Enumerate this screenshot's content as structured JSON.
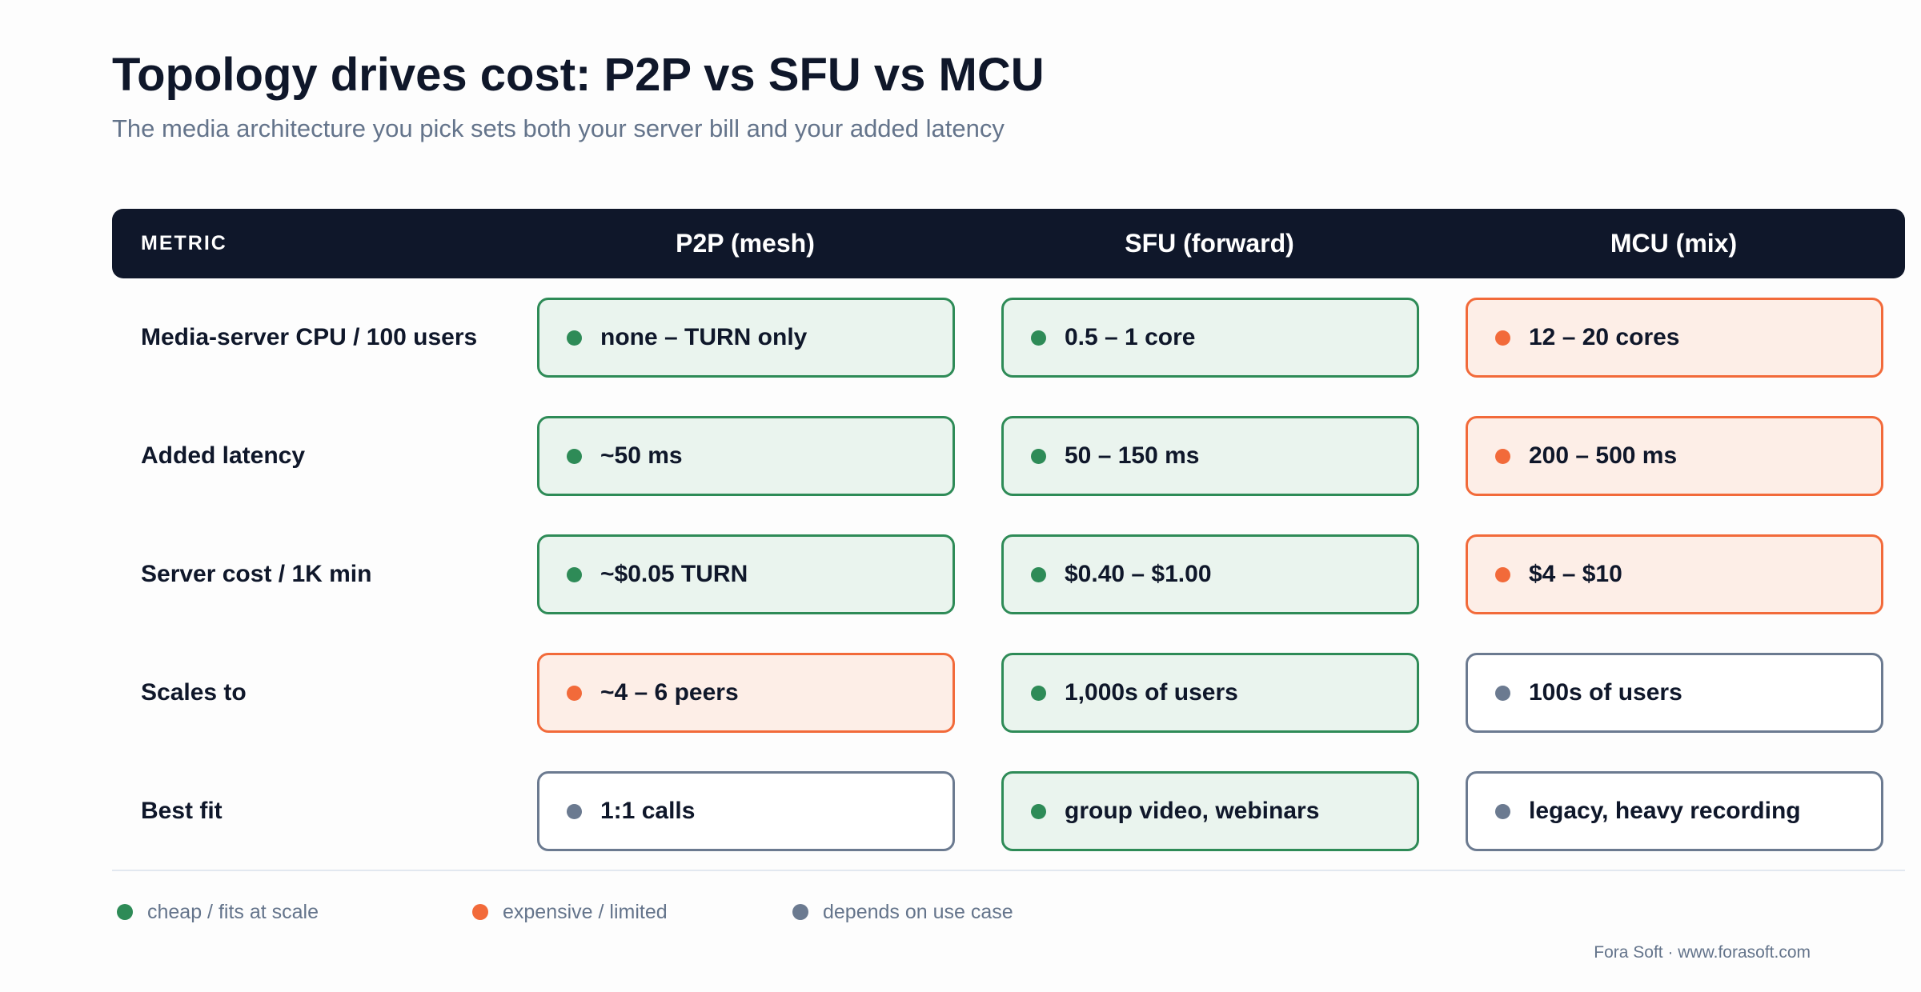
{
  "title": "Topology drives cost: P2P vs SFU vs MCU",
  "subtitle": "The media architecture you pick sets both your server bill and your added latency",
  "colors": {
    "header_bg": "#0f172a",
    "good": "#2e8b57",
    "good_fill": "#eaf4ee",
    "bad": "#f26a3a",
    "bad_fill": "#fdeee7",
    "neutral": "#6b7a90",
    "neutral_fill": "#ffffff"
  },
  "table": {
    "header": {
      "metric": "METRIC",
      "columns": [
        "P2P (mesh)",
        "SFU (forward)",
        "MCU (mix)"
      ]
    },
    "rows": [
      {
        "label": "Media-server CPU / 100 users",
        "cells": [
          {
            "text": "none – TURN only",
            "status": "good"
          },
          {
            "text": "0.5 – 1 core",
            "status": "good"
          },
          {
            "text": "12 – 20 cores",
            "status": "bad"
          }
        ]
      },
      {
        "label": "Added latency",
        "cells": [
          {
            "text": "~50 ms",
            "status": "good"
          },
          {
            "text": "50 – 150 ms",
            "status": "good"
          },
          {
            "text": "200 – 500 ms",
            "status": "bad"
          }
        ]
      },
      {
        "label": "Server cost / 1K min",
        "cells": [
          {
            "text": "~$0.05 TURN",
            "status": "good"
          },
          {
            "text": "$0.40 – $1.00",
            "status": "good"
          },
          {
            "text": "$4 – $10",
            "status": "bad"
          }
        ]
      },
      {
        "label": "Scales to",
        "cells": [
          {
            "text": "~4 – 6 peers",
            "status": "bad"
          },
          {
            "text": "1,000s of users",
            "status": "good"
          },
          {
            "text": "100s of users",
            "status": "neutral"
          }
        ]
      },
      {
        "label": "Best fit",
        "cells": [
          {
            "text": "1:1 calls",
            "status": "neutral"
          },
          {
            "text": "group video, webinars",
            "status": "good"
          },
          {
            "text": "legacy, heavy recording",
            "status": "neutral"
          }
        ]
      }
    ]
  },
  "legend": [
    {
      "label": "cheap / fits at scale",
      "status": "good"
    },
    {
      "label": "expensive / limited",
      "status": "bad"
    },
    {
      "label": "depends on use case",
      "status": "neutral"
    }
  ],
  "footer": "Fora Soft · www.forasoft.com"
}
